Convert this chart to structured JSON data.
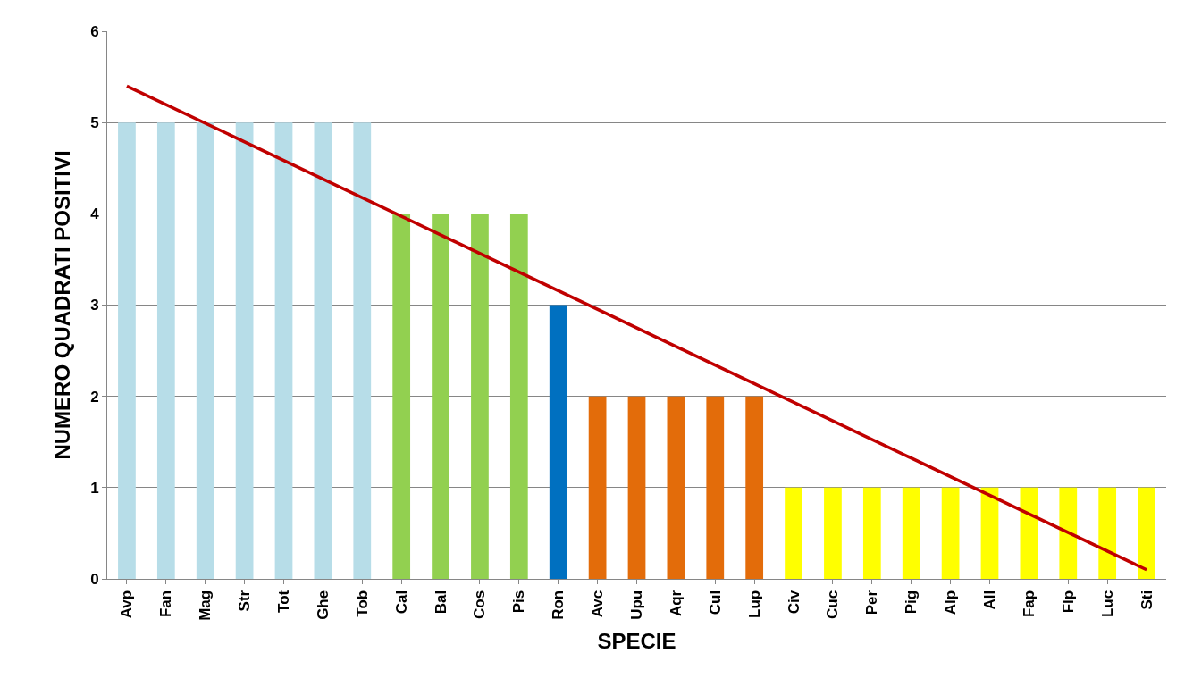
{
  "chart_data": {
    "type": "bar",
    "xlabel": "SPECIE",
    "ylabel": "NUMERO QUADRATI POSITIVI",
    "categories": [
      "Avp",
      "Fan",
      "Mag",
      "Str",
      "Tot",
      "Ghe",
      "Tob",
      "Cal",
      "Bal",
      "Cos",
      "Pis",
      "Ron",
      "Avc",
      "Upu",
      "Aqr",
      "Cul",
      "Lup",
      "Civ",
      "Cuc",
      "Per",
      "Pig",
      "Alp",
      "All",
      "Fap",
      "Flp",
      "Luc",
      "Sti"
    ],
    "series": [
      {
        "values": [
          5,
          5,
          5,
          5,
          5,
          5,
          5,
          4,
          4,
          4,
          4,
          3,
          2,
          2,
          2,
          2,
          2,
          1,
          1,
          1,
          1,
          1,
          1,
          1,
          1,
          1,
          1
        ],
        "colors": [
          "#b7dde8",
          "#b7dde8",
          "#b7dde8",
          "#b7dde8",
          "#b7dde8",
          "#b7dde8",
          "#b7dde8",
          "#92d050",
          "#92d050",
          "#92d050",
          "#92d050",
          "#0070c0",
          "#e36c0a",
          "#e36c0a",
          "#e36c0a",
          "#e36c0a",
          "#e36c0a",
          "#ffff00",
          "#ffff00",
          "#ffff00",
          "#ffff00",
          "#ffff00",
          "#ffff00",
          "#ffff00",
          "#ffff00",
          "#ffff00",
          "#ffff00"
        ]
      },
      {
        "type": "line",
        "x": [
          "Avp",
          "Sti"
        ],
        "values": [
          5.4,
          0.1
        ],
        "color": "#c00000"
      }
    ],
    "ylim": [
      0,
      6
    ],
    "yticks": [
      0,
      1,
      2,
      3,
      4,
      5,
      6
    ],
    "grid": "y",
    "legend": false
  }
}
